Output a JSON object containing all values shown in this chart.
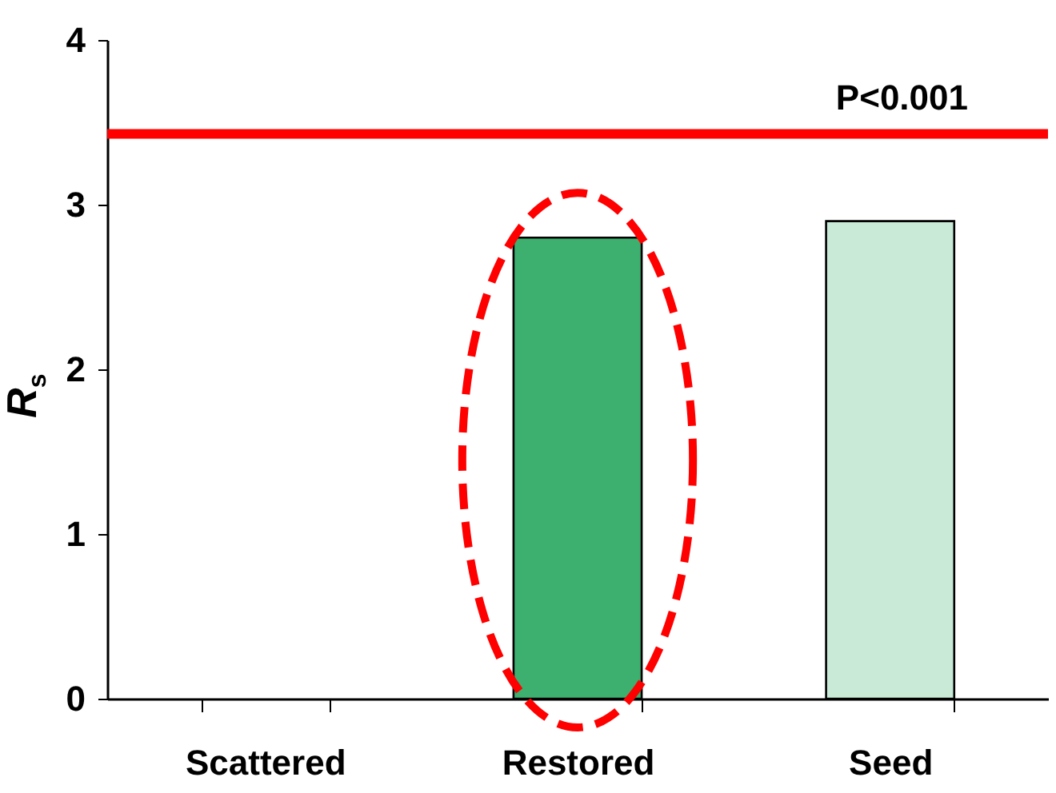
{
  "chart_data": {
    "type": "bar",
    "ylabel": "R$_{s}$",
    "categories": [
      "Scattered",
      "Restored",
      "Seed"
    ],
    "values": [
      null,
      2.8,
      2.9
    ],
    "colors": [
      "#3daf6e",
      "#3daf6e",
      "#c8ead6"
    ],
    "ylim": [
      0,
      4
    ],
    "yticks": [
      {
        "value": 0,
        "label": "0"
      },
      {
        "value": 1,
        "label": "1"
      },
      {
        "value": 2,
        "label": "2"
      },
      {
        "value": 3,
        "label": "3"
      },
      {
        "value": 4,
        "label": "4"
      }
    ],
    "grid": false,
    "legend": false,
    "ref_lines": [
      {
        "axis": "y",
        "value": 3.43,
        "label": "P<0.001",
        "color": "#ff0000"
      }
    ]
  }
}
